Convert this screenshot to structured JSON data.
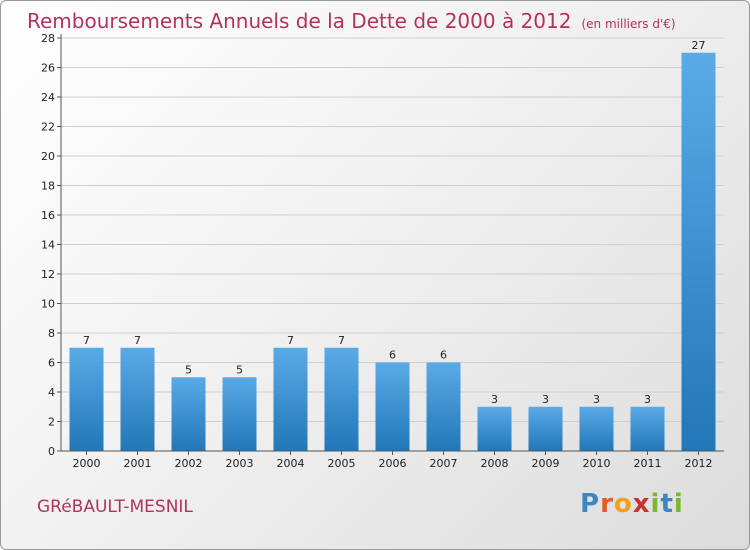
{
  "header": {
    "title": "Remboursements Annuels de la Dette de 2000 à 2012",
    "subtitle": "(en milliers d'€)"
  },
  "footer": {
    "commune": "GRéBAULT-MESNIL",
    "logo_letters": [
      {
        "char": "P",
        "color": "#3d86c6"
      },
      {
        "char": "r",
        "color": "#e25a2a"
      },
      {
        "char": "o",
        "color": "#f0a020"
      },
      {
        "char": "x",
        "color": "#cc2f2f"
      },
      {
        "char": "i",
        "color": "#79b72f"
      },
      {
        "char": "t",
        "color": "#3d86c6"
      },
      {
        "char": "i",
        "color": "#79b72f"
      }
    ]
  },
  "colors": {
    "bar_light": "#5aaae6",
    "bar_dark": "#2277b8",
    "title": "#b2325f"
  },
  "chart_data": {
    "type": "bar",
    "categories": [
      "2000",
      "2001",
      "2002",
      "2003",
      "2004",
      "2005",
      "2006",
      "2007",
      "2008",
      "2009",
      "2010",
      "2011",
      "2012"
    ],
    "values": [
      7,
      7,
      5,
      5,
      7,
      7,
      6,
      6,
      3,
      3,
      3,
      3,
      27
    ],
    "ylim": [
      0,
      28
    ],
    "yticks": [
      0,
      2,
      4,
      6,
      8,
      10,
      12,
      14,
      16,
      18,
      20,
      22,
      24,
      26,
      28
    ],
    "grid": true,
    "show_value_labels": true
  }
}
